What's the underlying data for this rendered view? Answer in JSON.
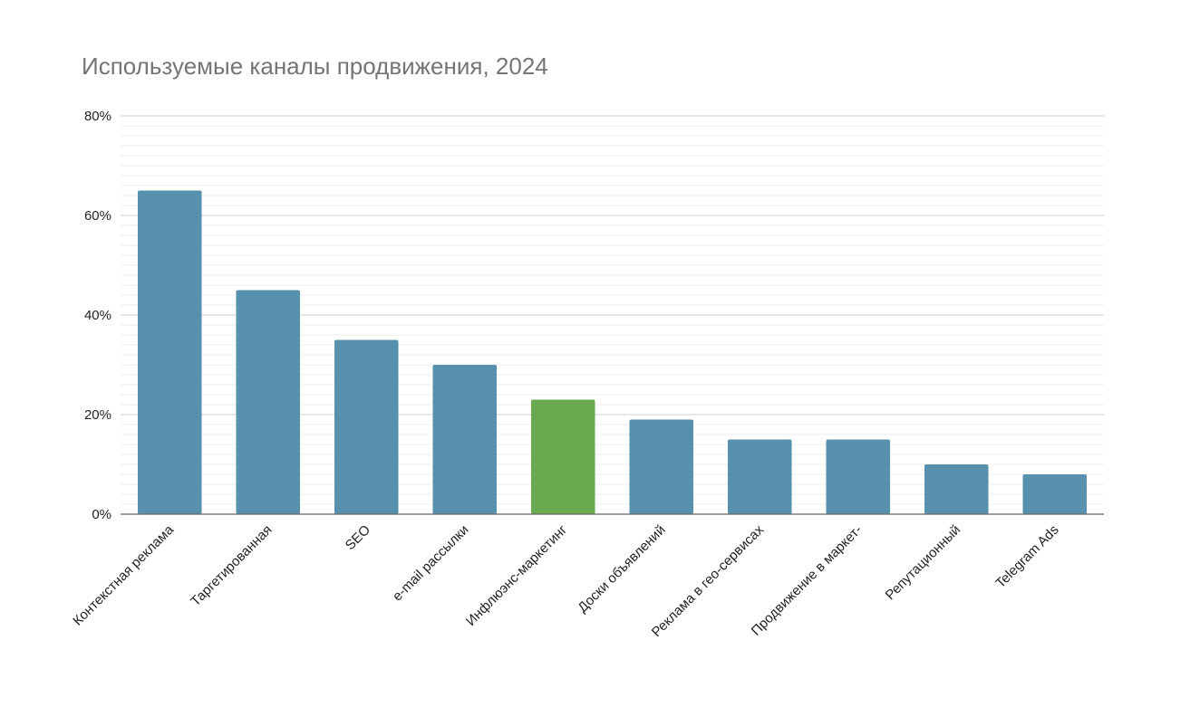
{
  "chart_data": {
    "type": "bar",
    "title": "Используемые каналы продвижения, 2024",
    "xlabel": "",
    "ylabel": "",
    "categories": [
      "Контекстная реклама",
      "Таргетированная",
      "SEO",
      "e-mail рассылки",
      "Инфлюэнс-маркетинг",
      "Доски объявлений",
      "Реклама в гео-сервисах",
      "Продвижение в маркет-",
      "Репутационный",
      "Telegram Ads"
    ],
    "values": [
      65,
      45,
      35,
      30,
      23,
      19,
      15,
      15,
      10,
      8
    ],
    "ylim": [
      0,
      80
    ],
    "yticks": [
      0,
      20,
      40,
      60,
      80
    ],
    "ytick_labels": [
      "0%",
      "20%",
      "40%",
      "60%",
      "80%"
    ],
    "minor_step": 2,
    "grid": true,
    "legend": "none",
    "colors": {
      "bar": "#5891ae",
      "highlight": "#6aa84f",
      "major_grid": "#cfcfcf",
      "minor_grid": "#ececec",
      "axis": "#666666"
    },
    "highlight_index": 4
  }
}
